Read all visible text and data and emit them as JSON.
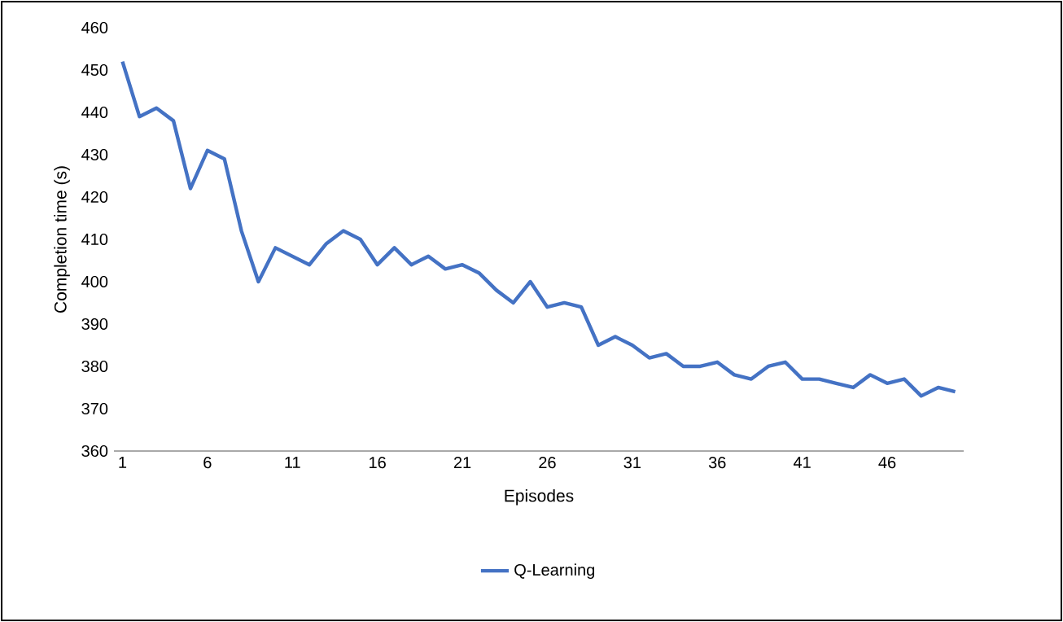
{
  "chart_data": {
    "type": "line",
    "xlabel": "Episodes",
    "ylabel": "Completion time (s)",
    "x": [
      1,
      2,
      3,
      4,
      5,
      6,
      7,
      8,
      9,
      10,
      11,
      12,
      13,
      14,
      15,
      16,
      17,
      18,
      19,
      20,
      21,
      22,
      23,
      24,
      25,
      26,
      27,
      28,
      29,
      30,
      31,
      32,
      33,
      34,
      35,
      36,
      37,
      38,
      39,
      40,
      41,
      42,
      43,
      44,
      45,
      46,
      47,
      48,
      49,
      50
    ],
    "series": [
      {
        "name": "Q-Learning",
        "color": "#4472c4",
        "values": [
          452,
          439,
          441,
          438,
          422,
          431,
          429,
          412,
          400,
          408,
          406,
          404,
          409,
          412,
          410,
          404,
          408,
          404,
          406,
          403,
          404,
          402,
          398,
          395,
          400,
          394,
          395,
          394,
          385,
          387,
          385,
          382,
          383,
          380,
          380,
          381,
          378,
          377,
          380,
          381,
          377,
          377,
          376,
          375,
          378,
          376,
          377,
          373,
          375,
          374
        ]
      }
    ],
    "xlim": [
      0.5,
      50.5
    ],
    "xticks": [
      1,
      6,
      11,
      16,
      21,
      26,
      31,
      36,
      41,
      46
    ],
    "ylim": [
      360,
      460
    ],
    "yticks": [
      360,
      370,
      380,
      390,
      400,
      410,
      420,
      430,
      440,
      450,
      460
    ],
    "legend": "bottom",
    "grid": false,
    "marker": "none",
    "line_style": "solid"
  }
}
